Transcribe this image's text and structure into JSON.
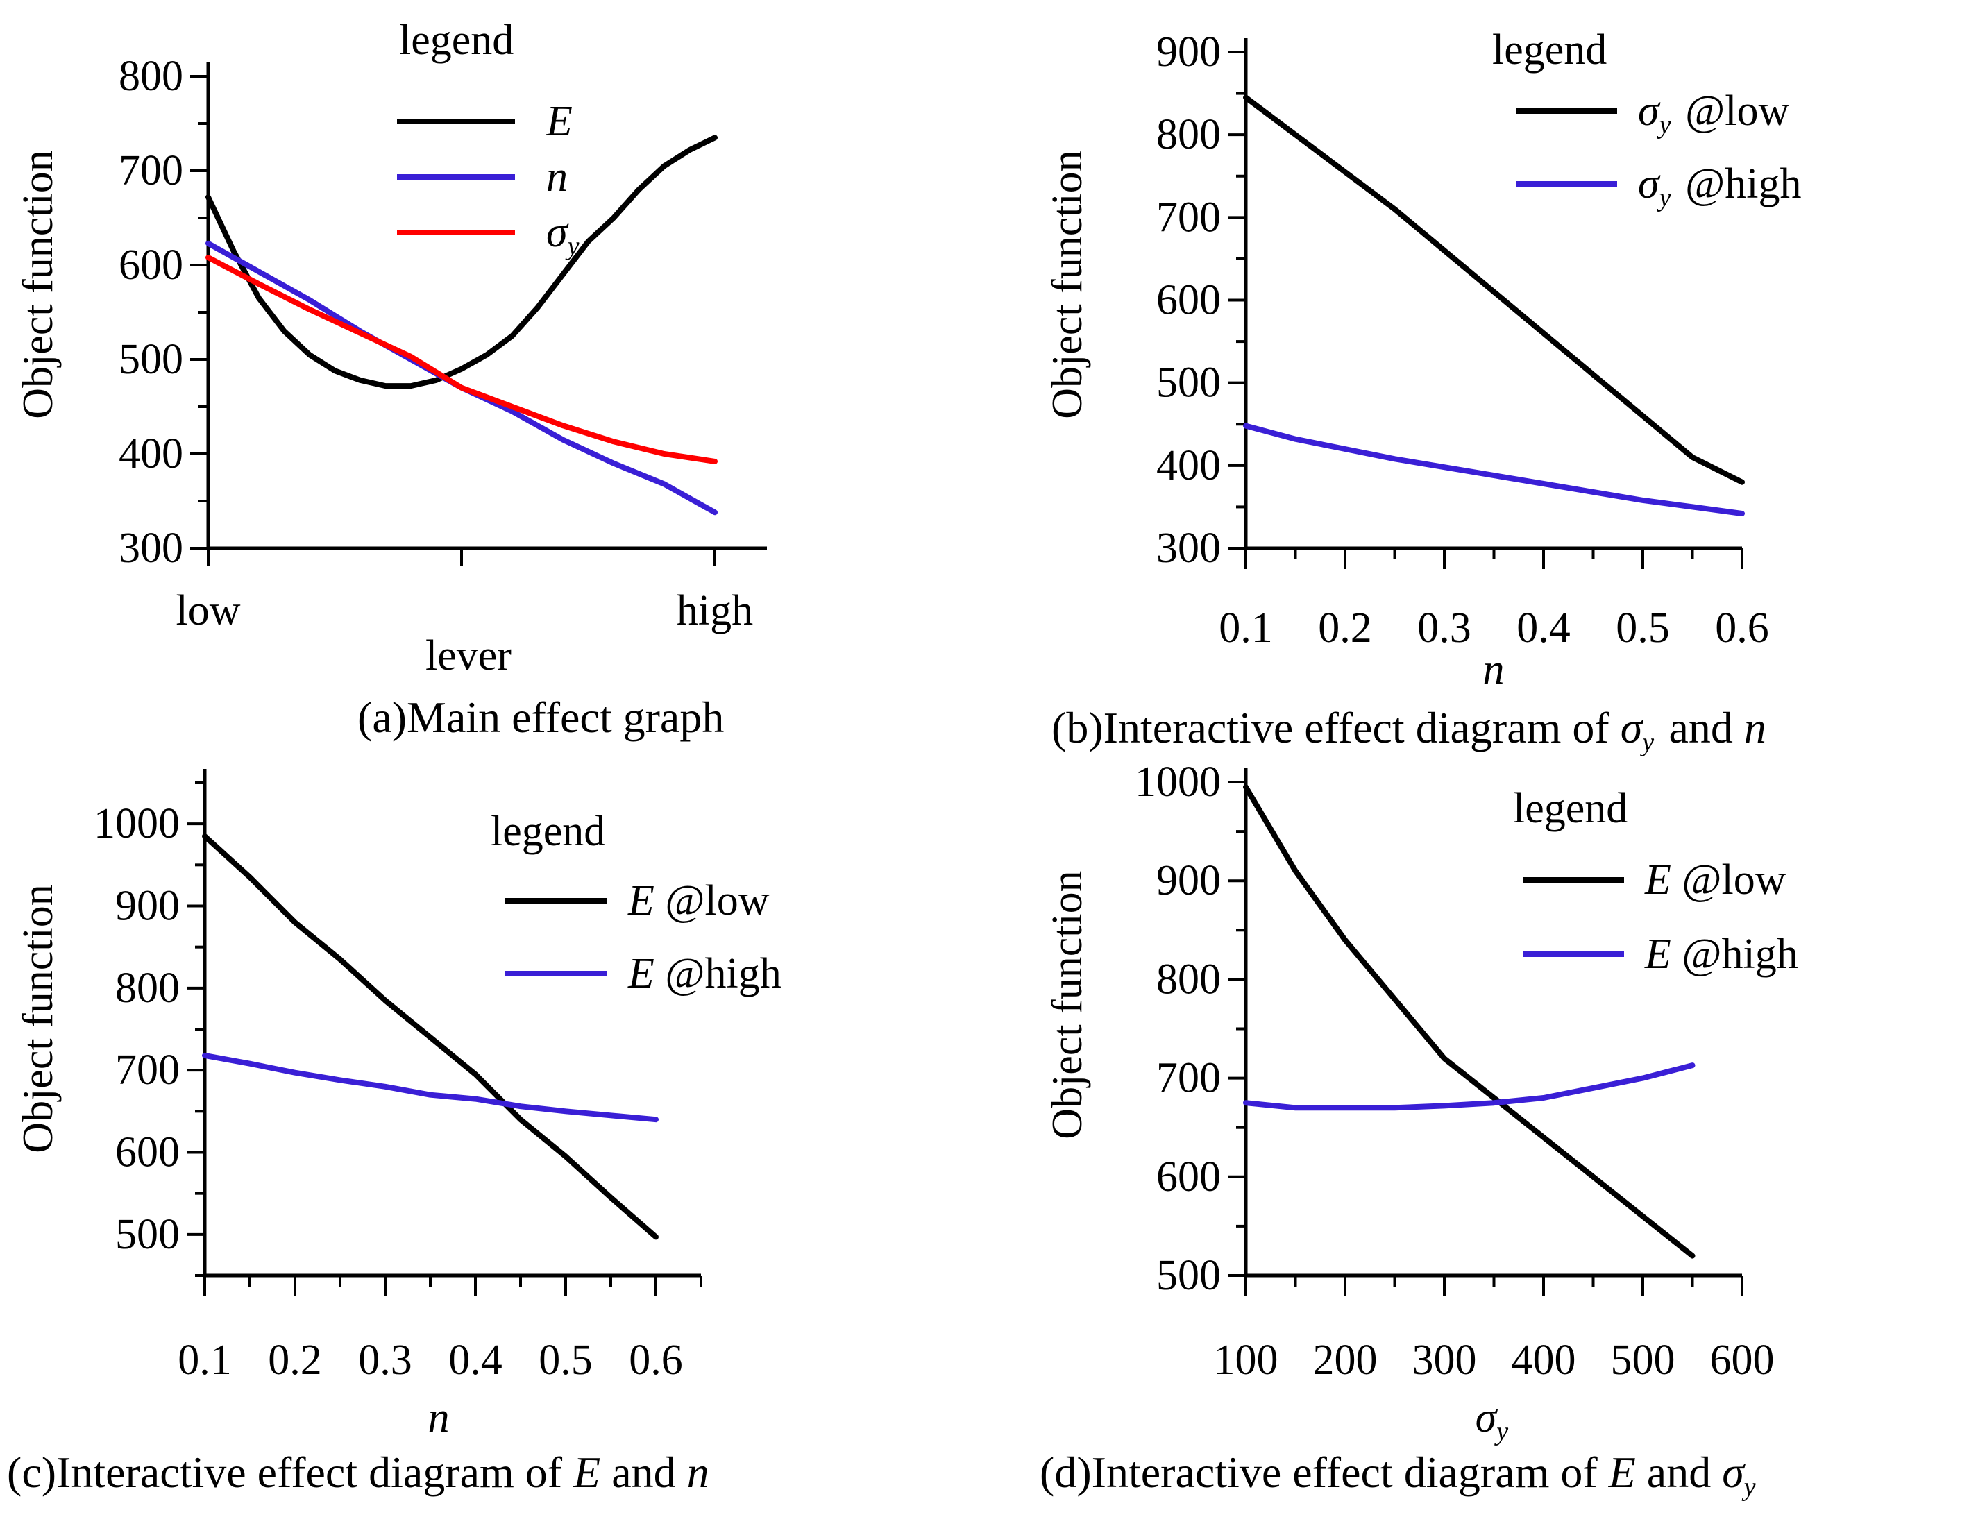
{
  "colors": {
    "black": "#000000",
    "blue": "#3a1fd6",
    "red": "#ff0000"
  },
  "chart_data": [
    {
      "id": "a",
      "type": "line",
      "caption": "(a)Main effect graph",
      "xlabel": "lever",
      "ylabel": "Object function",
      "categories": [
        "low",
        "high"
      ],
      "xlim": [
        0,
        1
      ],
      "ylim": [
        300,
        800
      ],
      "yticks": [
        300,
        400,
        500,
        600,
        700,
        800
      ],
      "legend_title": "legend",
      "legend_position": "top-right",
      "series": [
        {
          "name": "E",
          "color": "#000000",
          "x": [
            0,
            0.05,
            0.1,
            0.15,
            0.2,
            0.25,
            0.3,
            0.35,
            0.4,
            0.45,
            0.5,
            0.55,
            0.6,
            0.65,
            0.7,
            0.75,
            0.8,
            0.85,
            0.9,
            0.95,
            1.0
          ],
          "values": [
            672,
            615,
            565,
            530,
            505,
            488,
            478,
            472,
            472,
            478,
            490,
            505,
            525,
            555,
            590,
            625,
            650,
            680,
            705,
            722,
            735
          ]
        },
        {
          "name": "n",
          "color": "#3a1fd6",
          "x": [
            0,
            0.1,
            0.2,
            0.3,
            0.4,
            0.5,
            0.6,
            0.7,
            0.8,
            0.9,
            1.0
          ],
          "values": [
            623,
            593,
            563,
            530,
            500,
            470,
            445,
            415,
            390,
            368,
            338
          ]
        },
        {
          "name": "σy",
          "color": "#ff0000",
          "x": [
            0,
            0.1,
            0.2,
            0.3,
            0.4,
            0.5,
            0.6,
            0.7,
            0.8,
            0.9,
            1.0
          ],
          "values": [
            608,
            580,
            553,
            528,
            503,
            470,
            450,
            430,
            413,
            400,
            392
          ]
        }
      ]
    },
    {
      "id": "b",
      "type": "line",
      "caption": "(b)Interactive effect diagram of σy and n",
      "xlabel": "n",
      "ylabel": "Object function",
      "xlim": [
        0.1,
        0.6
      ],
      "xticks": [
        0.1,
        0.2,
        0.3,
        0.4,
        0.5,
        0.6
      ],
      "ylim": [
        300,
        900
      ],
      "yticks": [
        300,
        400,
        500,
        600,
        700,
        800,
        900
      ],
      "legend_title": "legend",
      "legend_position": "top-right",
      "series": [
        {
          "name": "σy @low",
          "color": "#000000",
          "x": [
            0.1,
            0.15,
            0.2,
            0.25,
            0.3,
            0.35,
            0.4,
            0.45,
            0.5,
            0.55,
            0.6
          ],
          "values": [
            845,
            800,
            755,
            710,
            660,
            610,
            560,
            510,
            460,
            410,
            380
          ]
        },
        {
          "name": "σy @high",
          "color": "#3a1fd6",
          "x": [
            0.1,
            0.15,
            0.2,
            0.25,
            0.3,
            0.35,
            0.4,
            0.45,
            0.5,
            0.55,
            0.6
          ],
          "values": [
            448,
            432,
            420,
            408,
            398,
            388,
            378,
            368,
            358,
            350,
            342
          ]
        }
      ]
    },
    {
      "id": "c",
      "type": "line",
      "caption": "(c)Interactive effect diagram of E and n",
      "xlabel": "n",
      "ylabel": "Object function",
      "xlim": [
        0.1,
        0.65
      ],
      "xticks": [
        0.1,
        0.2,
        0.3,
        0.4,
        0.5,
        0.6
      ],
      "ylim": [
        450,
        1050
      ],
      "yticks": [
        500,
        600,
        700,
        800,
        900,
        1000
      ],
      "legend_title": "legend",
      "legend_position": "top-right",
      "series": [
        {
          "name": "E @low",
          "color": "#000000",
          "x": [
            0.1,
            0.15,
            0.2,
            0.25,
            0.3,
            0.35,
            0.4,
            0.45,
            0.5,
            0.55,
            0.6
          ],
          "values": [
            985,
            935,
            880,
            835,
            785,
            740,
            695,
            640,
            595,
            545,
            497
          ]
        },
        {
          "name": "E @high",
          "color": "#3a1fd6",
          "x": [
            0.1,
            0.15,
            0.2,
            0.25,
            0.3,
            0.35,
            0.4,
            0.45,
            0.5,
            0.55,
            0.6
          ],
          "values": [
            718,
            708,
            697,
            688,
            680,
            670,
            665,
            656,
            650,
            645,
            640
          ]
        }
      ]
    },
    {
      "id": "d",
      "type": "line",
      "caption": "(d)Interactive effect diagram of E and σy",
      "xlabel": "σy",
      "ylabel": "Object function",
      "xlim": [
        100,
        600
      ],
      "xticks": [
        100,
        200,
        300,
        400,
        500,
        600
      ],
      "ylim": [
        500,
        1000
      ],
      "yticks": [
        500,
        600,
        700,
        800,
        900,
        1000
      ],
      "legend_title": "legend",
      "legend_position": "top-right",
      "series": [
        {
          "name": "E @low",
          "color": "#000000",
          "x": [
            100,
            150,
            200,
            250,
            300,
            350,
            400,
            450,
            500,
            550
          ],
          "values": [
            995,
            910,
            840,
            780,
            720,
            680,
            640,
            600,
            560,
            520
          ]
        },
        {
          "name": "E @high",
          "color": "#3a1fd6",
          "x": [
            100,
            150,
            200,
            250,
            300,
            350,
            400,
            450,
            500,
            550
          ],
          "values": [
            675,
            670,
            670,
            670,
            672,
            675,
            680,
            690,
            700,
            713
          ]
        }
      ]
    }
  ]
}
